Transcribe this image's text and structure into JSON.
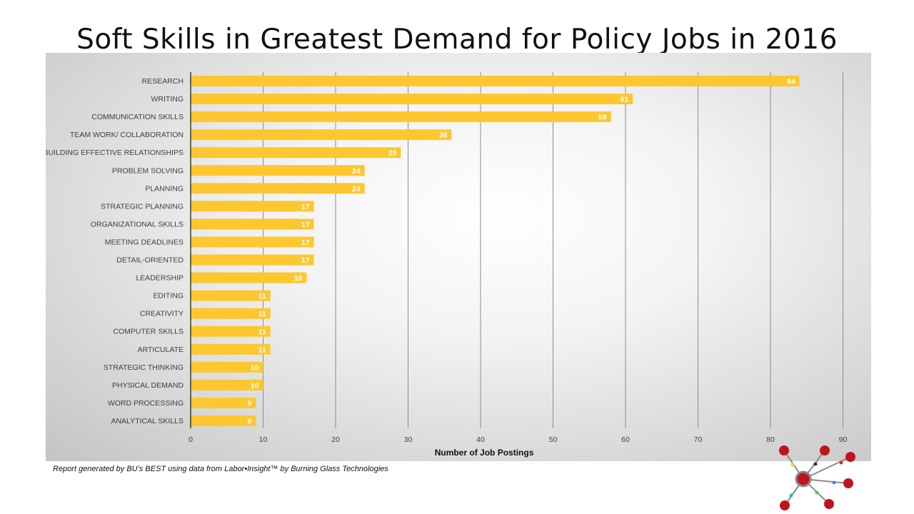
{
  "chart_data": {
    "type": "bar",
    "orientation": "horizontal",
    "title": "Soft Skills in Greatest Demand for Policy Jobs in 2016",
    "xlabel": "Number of Job Postings",
    "ylabel": "",
    "xlim": [
      0,
      90
    ],
    "xticks": [
      0,
      10,
      20,
      30,
      40,
      50,
      60,
      70,
      80,
      90
    ],
    "grid": true,
    "bar_color": "#FDC72F",
    "categories": [
      "RESEARCH",
      "WRITING",
      "COMMUNICATION SKILLS",
      "TEAM WORK/ COLLABORATION",
      "BUILDING EFFECTIVE RELATIONSHIPS",
      "PROBLEM SOLVING",
      "PLANNING",
      "STRATEGIC PLANNING",
      "ORGANIZATIONAL SKILLS",
      "MEETING DEADLINES",
      "DETAIL-ORIENTED",
      "LEADERSHIP",
      "EDITING",
      "CREATIVITY",
      "COMPUTER SKILLS",
      "ARTICULATE",
      "STRATEGIC THINKING",
      "PHYSICAL DEMAND",
      "WORD PROCESSING",
      "ANALYTICAL SKILLS"
    ],
    "values": [
      84,
      61,
      58,
      36,
      29,
      24,
      24,
      17,
      17,
      17,
      17,
      16,
      11,
      11,
      11,
      11,
      10,
      10,
      9,
      9
    ]
  },
  "footer": {
    "note": "Report generated by BU’s BEST using data from Labor•Insight™ by Burning Glass Technologies"
  }
}
